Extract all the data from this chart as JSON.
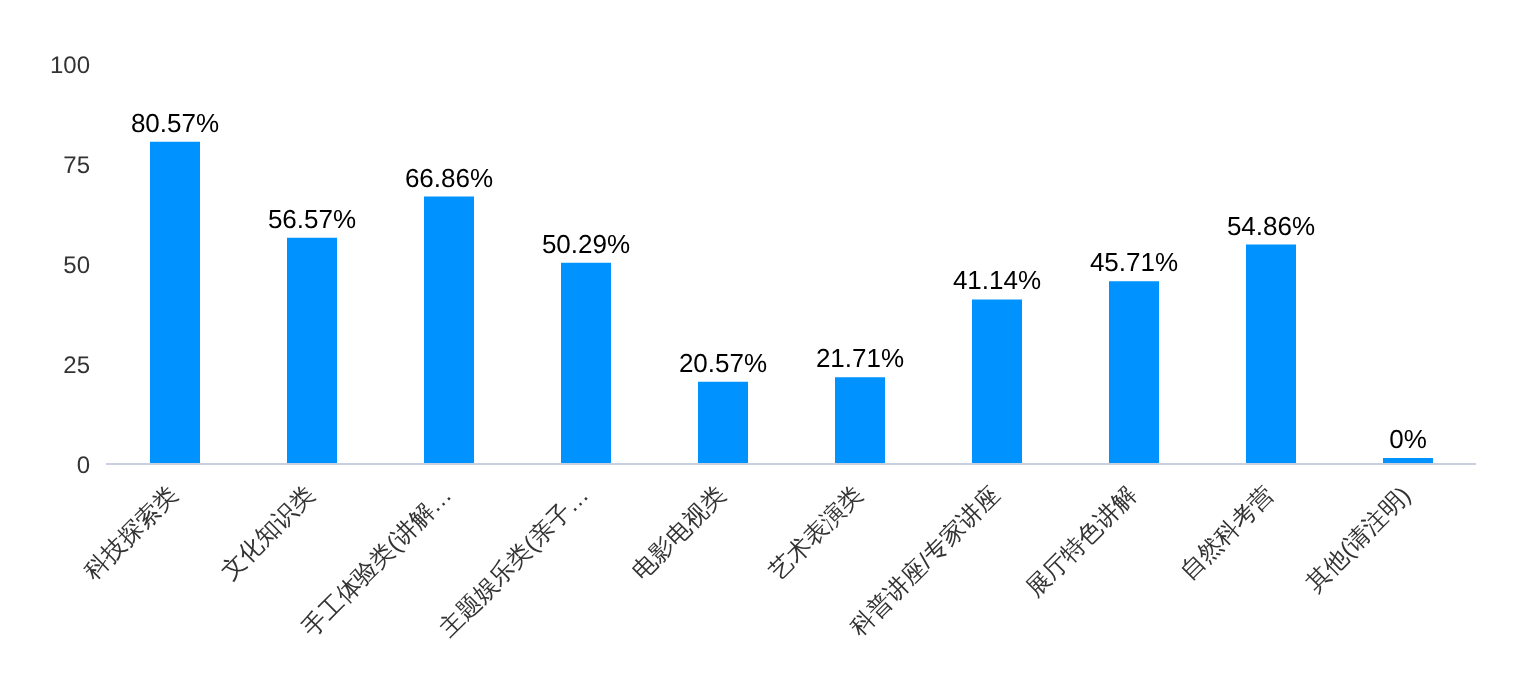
{
  "chart_data": {
    "type": "bar",
    "categories": [
      "科技探索类",
      "文化知识类",
      "手工体验类(讲解…",
      "主题娱乐类(亲子…",
      "电影电视类",
      "艺术表演类",
      "科普讲座/专家讲座",
      "展厅特色讲解",
      "自然科考营",
      "其他(请注明)"
    ],
    "values": [
      80.57,
      56.57,
      66.86,
      50.29,
      20.57,
      21.71,
      41.14,
      45.71,
      54.86,
      0
    ],
    "value_labels": [
      "80.57%",
      "56.57%",
      "66.86%",
      "50.29%",
      "20.57%",
      "21.71%",
      "41.14%",
      "45.71%",
      "54.86%",
      "0%"
    ],
    "color": "#0093ff",
    "ylim": [
      0,
      100
    ],
    "yticks": [
      0,
      25,
      50,
      75,
      100
    ],
    "grid": false,
    "legend": false
  }
}
